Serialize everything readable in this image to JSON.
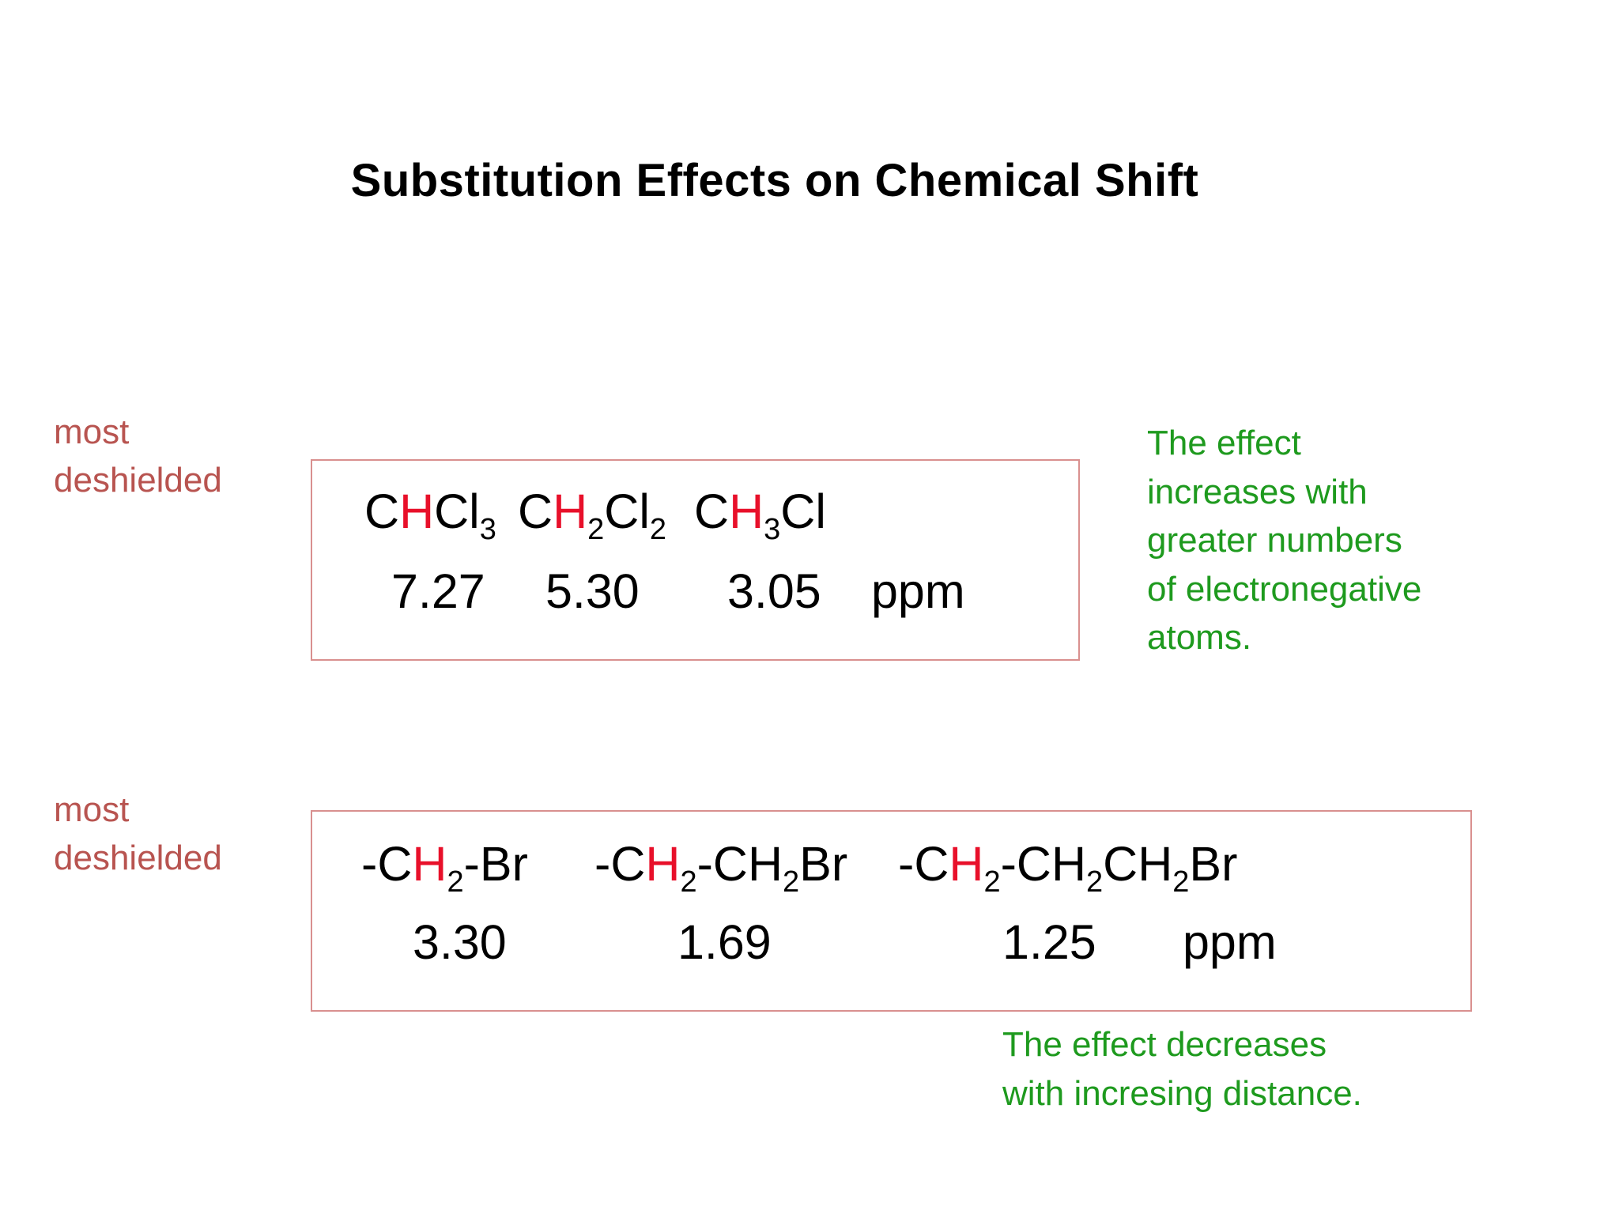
{
  "title": "Substitution Effects on Chemical Shift",
  "colors": {
    "label": "#b85450",
    "highlight": "#e8102a",
    "note": "#1e9a1e",
    "box_border": "#d9908f"
  },
  "label1": {
    "line1": "most",
    "line2": "deshielded"
  },
  "label2": {
    "line1": "most",
    "line2": "deshielded"
  },
  "box1": {
    "formulas": [
      {
        "pre": "C",
        "h": "H",
        "hsub": "",
        "rest": "Cl",
        "restsub": "3",
        "tail": "",
        "tailsub": "",
        "tail2": ""
      },
      {
        "pre": "C",
        "h": "H",
        "hsub": "2",
        "rest": "Cl",
        "restsub": "2",
        "tail": "",
        "tailsub": "",
        "tail2": ""
      },
      {
        "pre": "C",
        "h": "H",
        "hsub": "3",
        "rest": "Cl",
        "restsub": "",
        "tail": "",
        "tailsub": "",
        "tail2": ""
      }
    ],
    "values": [
      "7.27",
      "5.30",
      "3.05"
    ],
    "unit": "ppm"
  },
  "box2": {
    "formulas": [
      {
        "pre": "-C",
        "h": "H",
        "hsub": "2",
        "rest": "-Br",
        "restsub": "",
        "tail": "",
        "tailsub": "",
        "tail2": ""
      },
      {
        "pre": "-C",
        "h": "H",
        "hsub": "2",
        "rest": "-CH",
        "restsub": "2",
        "tail": "Br",
        "tailsub": "",
        "tail2": ""
      },
      {
        "pre": "-C",
        "h": "H",
        "hsub": "2",
        "rest": "-CH",
        "restsub": "2",
        "tail": "CH",
        "tailsub": "2",
        "tail2": "Br"
      }
    ],
    "values": [
      "3.30",
      "1.69",
      "1.25"
    ],
    "unit": "ppm"
  },
  "note1": {
    "lines": [
      "The effect",
      "increases with",
      "greater numbers",
      "of electronegative",
      "atoms."
    ]
  },
  "note2": {
    "lines": [
      "The effect decreases",
      "with incresing distance."
    ]
  }
}
